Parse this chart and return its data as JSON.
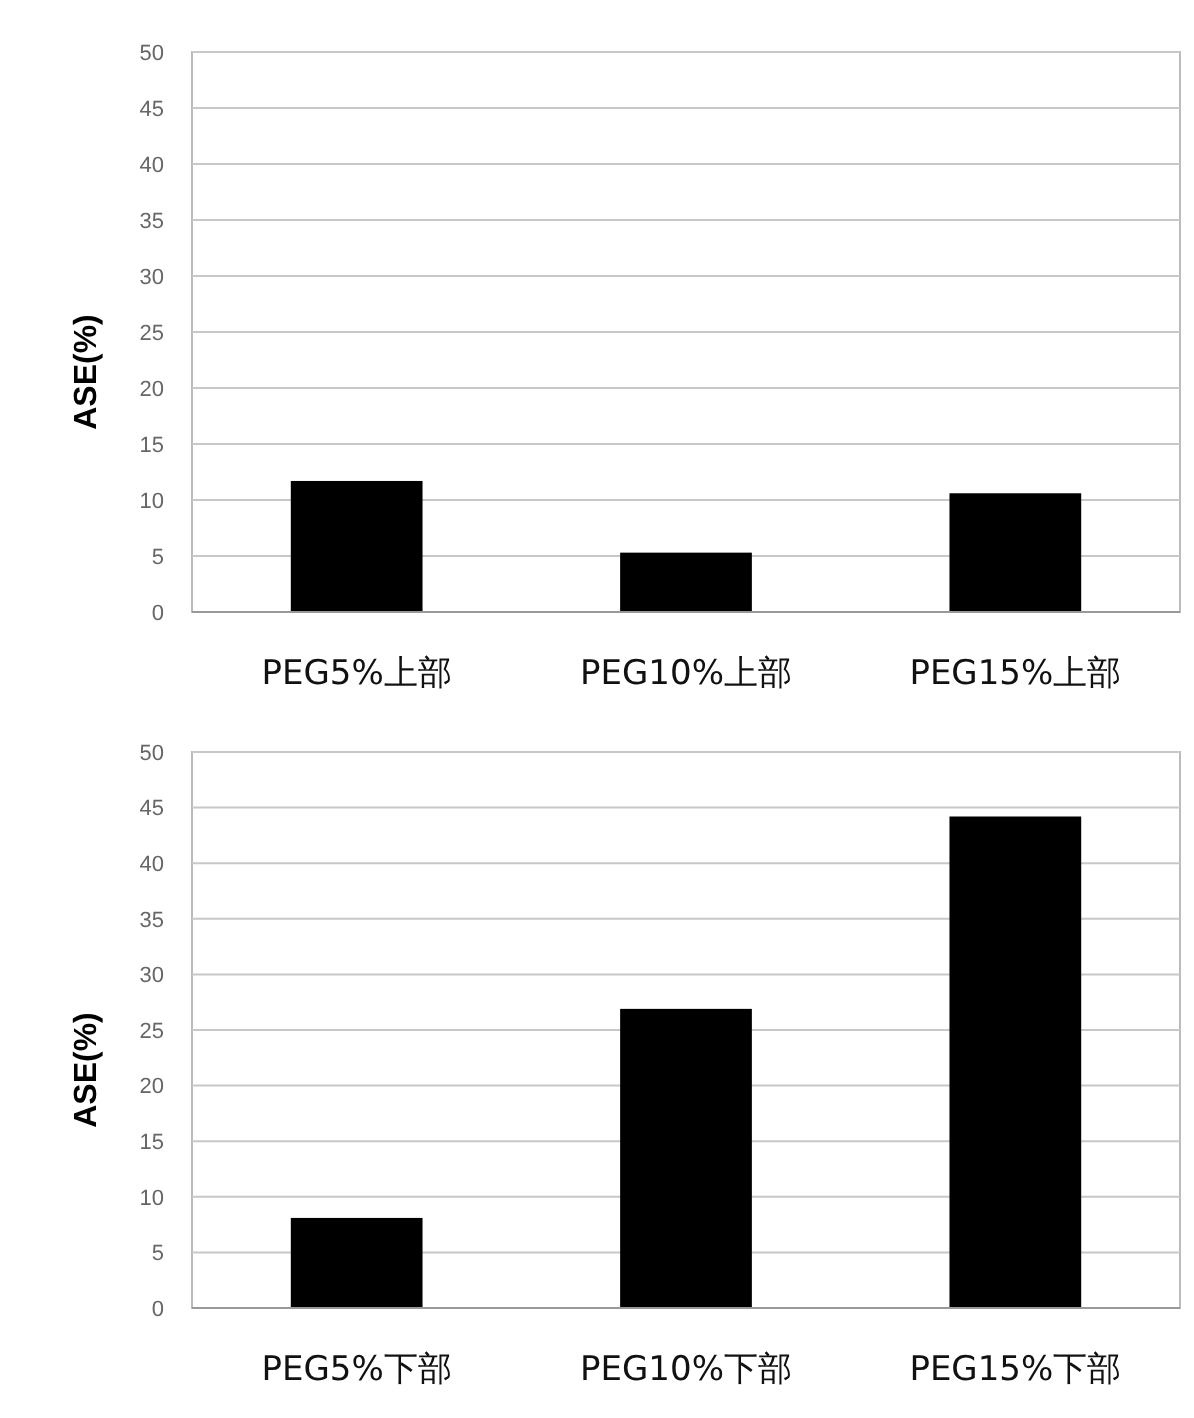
{
  "chart_data": [
    {
      "type": "bar",
      "ylabel": "ASE(%)",
      "categories": [
        "PEG5%上部",
        "PEG10%上部",
        "PEG15%上部"
      ],
      "values": [
        11.7,
        5.3,
        10.6
      ],
      "color": "#000000",
      "ylim": [
        0,
        50
      ],
      "yticks": [
        0,
        5,
        10,
        15,
        20,
        25,
        30,
        35,
        40,
        45,
        50
      ],
      "grid": "y"
    },
    {
      "type": "bar",
      "ylabel": "ASE(%)",
      "categories": [
        "PEG5%下部",
        "PEG10%下部",
        "PEG15%下部"
      ],
      "values": [
        8.1,
        26.9,
        44.2
      ],
      "color": "#000000",
      "ylim": [
        0,
        50
      ],
      "yticks": [
        0,
        5,
        10,
        15,
        20,
        25,
        30,
        35,
        40,
        45,
        50
      ],
      "grid": "y"
    }
  ]
}
